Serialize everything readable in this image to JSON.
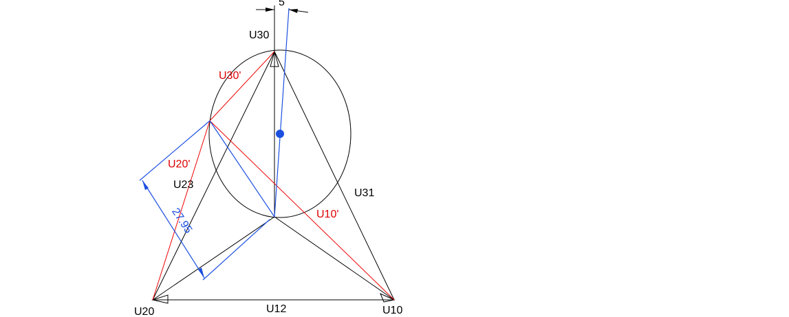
{
  "labels": {
    "u30": "U30",
    "u30_prime": "U30'",
    "u20_prime": "U20'",
    "u23": "U23",
    "u31": "U31",
    "u10_prime": "U10'",
    "u20": "U20",
    "u12": "U12",
    "u10": "U10"
  },
  "dimensions": {
    "offset": "5",
    "length": "27.95"
  }
}
